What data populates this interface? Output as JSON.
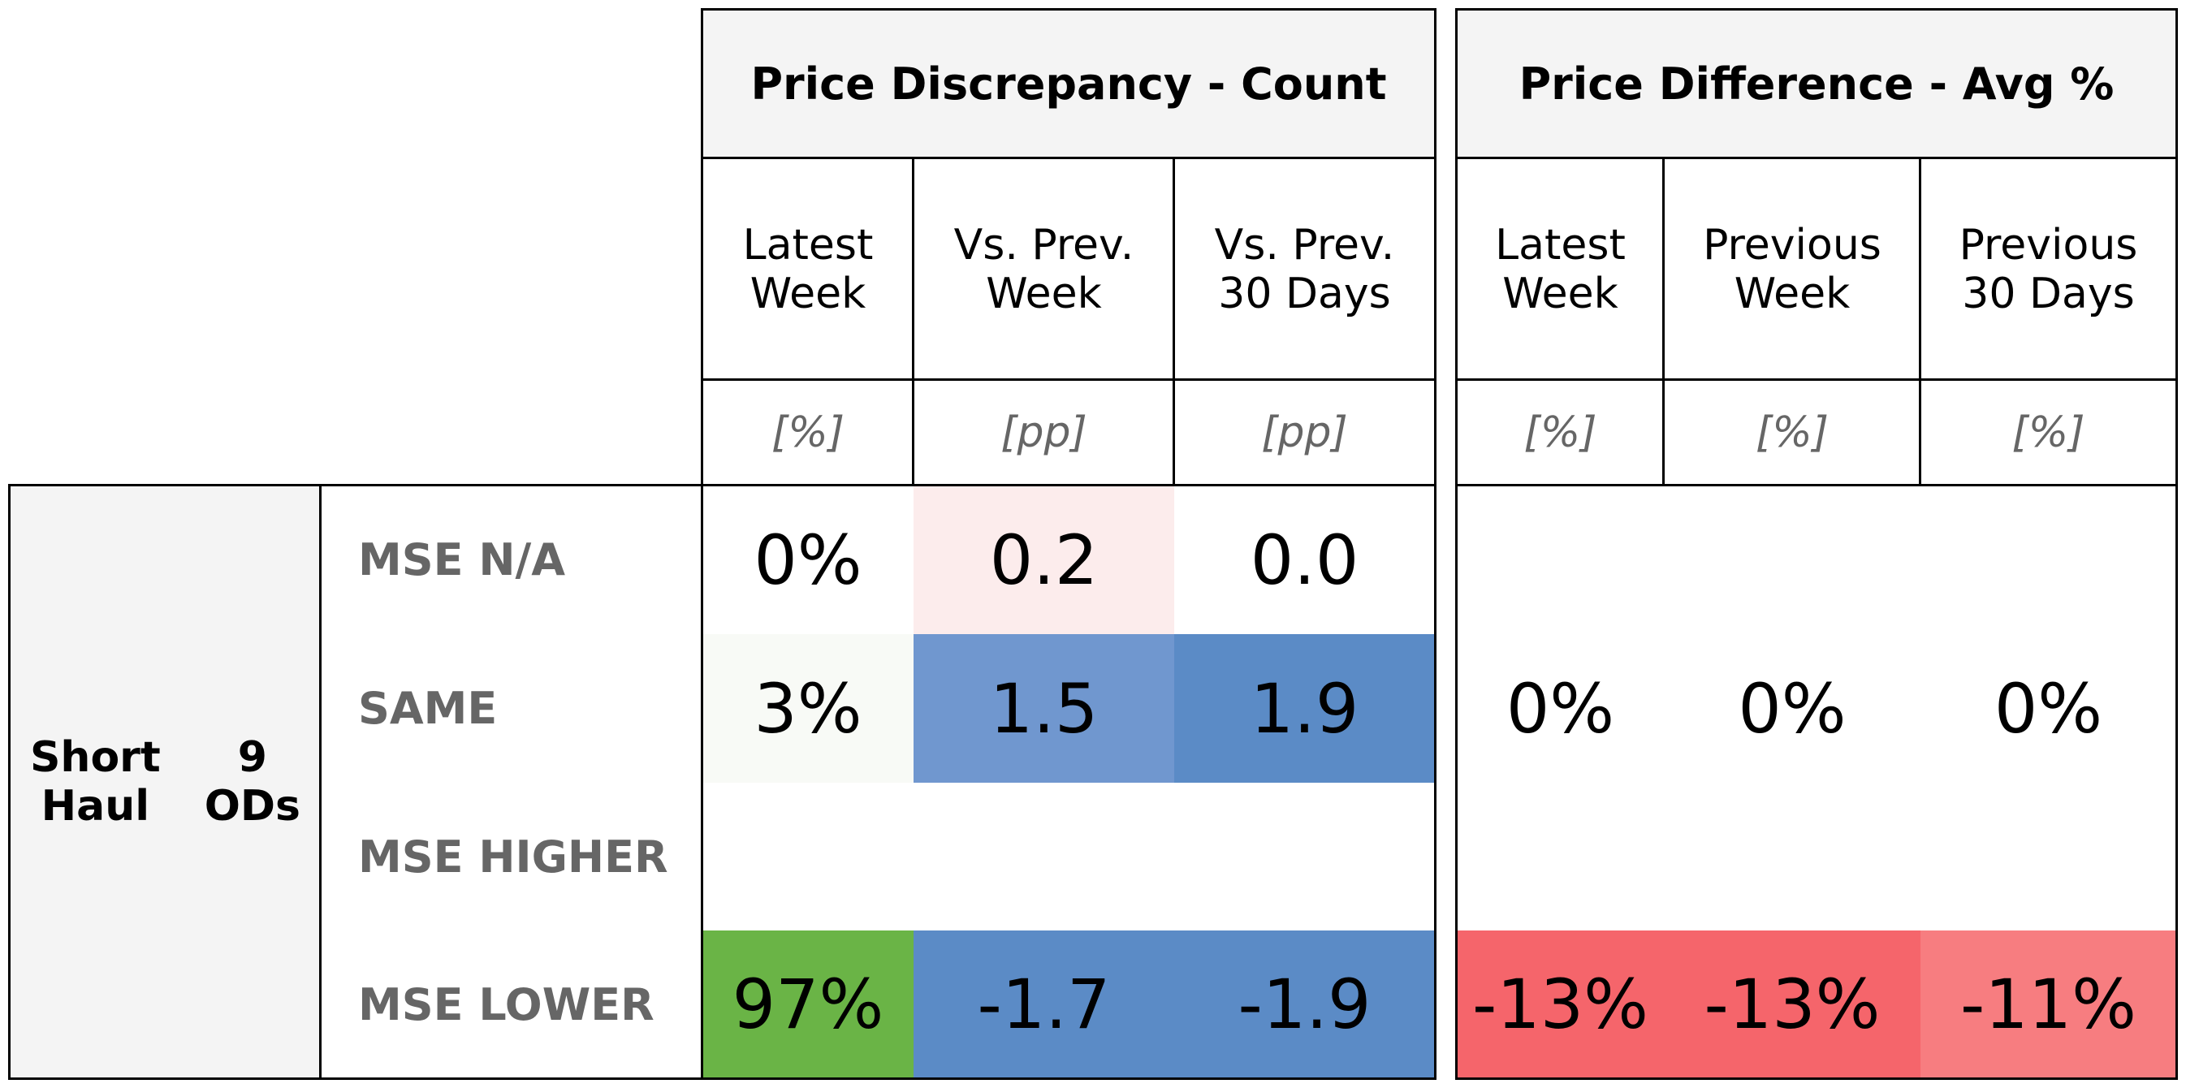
{
  "chart_data": {
    "type": "table",
    "groups": [
      {
        "title": "Price Discrepancy - Count",
        "columns": [
          {
            "line1": "Latest",
            "line2": "Week",
            "unit": "[%]"
          },
          {
            "line1": "Vs. Prev.",
            "line2": "Week",
            "unit": "[pp]"
          },
          {
            "line1": "Vs. Prev.",
            "line2": "30 Days",
            "unit": "[pp]"
          }
        ]
      },
      {
        "title": "Price Difference - Avg %",
        "columns": [
          {
            "line1": "Latest",
            "line2": "Week",
            "unit": "[%]"
          },
          {
            "line1": "Previous",
            "line2": "Week",
            "unit": "[%]"
          },
          {
            "line1": "Previous",
            "line2": "30 Days",
            "unit": "[%]"
          }
        ]
      }
    ],
    "segment": {
      "name_line1": "Short",
      "name_line2": "Haul",
      "count_line1": "9",
      "count_line2": "ODs"
    },
    "rows": [
      {
        "label": "MSE N/A",
        "count": [
          {
            "text": "0%",
            "value": 0,
            "color": "#ffffff"
          },
          {
            "text": "0.2",
            "value": 0.2,
            "color": "#fcecec"
          },
          {
            "text": "0.0",
            "value": 0.0,
            "color": "#ffffff"
          }
        ],
        "avg": [
          {
            "text": "",
            "value": null,
            "color": "#ffffff"
          },
          {
            "text": "",
            "value": null,
            "color": "#ffffff"
          },
          {
            "text": "",
            "value": null,
            "color": "#ffffff"
          }
        ]
      },
      {
        "label": "SAME",
        "count": [
          {
            "text": "3%",
            "value": 3,
            "color": "#f8faf6"
          },
          {
            "text": "1.5",
            "value": 1.5,
            "color": "#7097cf"
          },
          {
            "text": "1.9",
            "value": 1.9,
            "color": "#5b8bc6"
          }
        ],
        "avg": [
          {
            "text": "0%",
            "value": 0,
            "color": "#ffffff"
          },
          {
            "text": "0%",
            "value": 0,
            "color": "#ffffff"
          },
          {
            "text": "0%",
            "value": 0,
            "color": "#ffffff"
          }
        ]
      },
      {
        "label": "MSE HIGHER",
        "count": [
          {
            "text": "",
            "value": null,
            "color": "#ffffff"
          },
          {
            "text": "",
            "value": null,
            "color": "#ffffff"
          },
          {
            "text": "",
            "value": null,
            "color": "#ffffff"
          }
        ],
        "avg": [
          {
            "text": "",
            "value": null,
            "color": "#ffffff"
          },
          {
            "text": "",
            "value": null,
            "color": "#ffffff"
          },
          {
            "text": "",
            "value": null,
            "color": "#ffffff"
          }
        ]
      },
      {
        "label": "MSE LOWER",
        "count": [
          {
            "text": "97%",
            "value": 97,
            "color": "#6ab446"
          },
          {
            "text": "-1.7",
            "value": -1.7,
            "color": "#5b8bc6"
          },
          {
            "text": "-1.9",
            "value": -1.9,
            "color": "#5b8bc6"
          }
        ],
        "avg": [
          {
            "text": "-13%",
            "value": -13,
            "color": "#f5656b"
          },
          {
            "text": "-13%",
            "value": -13,
            "color": "#f5656b"
          },
          {
            "text": "-11%",
            "value": -11,
            "color": "#f77d80"
          }
        ]
      }
    ]
  }
}
